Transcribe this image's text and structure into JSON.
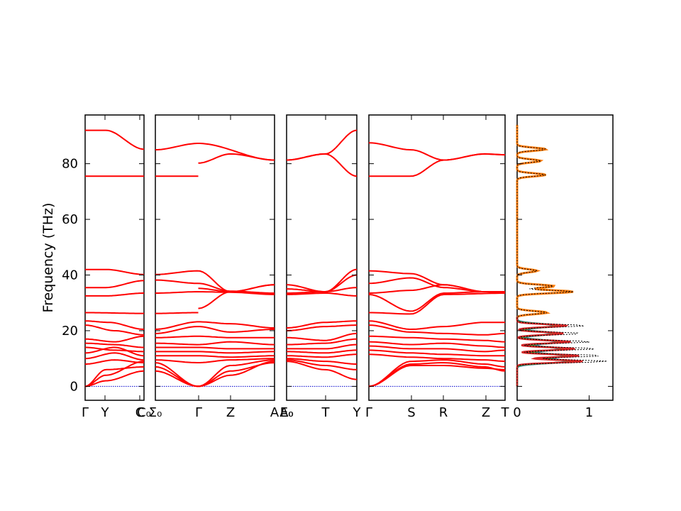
{
  "figure": {
    "ylabel": "Frequency (THz)"
  },
  "chart_data": {
    "type": "line",
    "ylim": [
      -5,
      97.5
    ],
    "yticks": [
      0,
      20,
      40,
      60,
      80
    ],
    "grid": false,
    "colors": {
      "band": "#ff0000",
      "zero_line": "#0000cc",
      "dos_total": "#000000",
      "dos_partial": [
        "#1f77b4",
        "#ff7f0e",
        "#2ca02c",
        "#d62728"
      ]
    },
    "band_panels": [
      {
        "xticks": [
          "Γ",
          "Y",
          "C",
          "C₀"
        ]
      },
      {
        "xticks": [
          "Σ₀",
          "Γ",
          "Z",
          "A"
        ]
      },
      {
        "xticks": [
          "A₀",
          "E₀",
          "T",
          "Y"
        ]
      },
      {
        "xticks": [
          "Γ",
          "S",
          "R",
          "Z",
          "T"
        ]
      }
    ],
    "dos_panel": {
      "xlim": [
        0,
        1.33
      ],
      "xticks": [
        "0",
        "1"
      ],
      "peaks": [
        {
          "f": 85.2,
          "v": 0.4
        },
        {
          "f": 81.0,
          "v": 0.33
        },
        {
          "f": 76.0,
          "v": 0.4
        },
        {
          "f": 41.5,
          "v": 0.28
        },
        {
          "f": 36.0,
          "v": 0.52
        },
        {
          "f": 34.0,
          "v": 0.78
        },
        {
          "f": 26.5,
          "v": 0.42
        },
        {
          "f": 21.8,
          "v": 0.95
        },
        {
          "f": 19.0,
          "v": 0.88
        },
        {
          "f": 16.0,
          "v": 1.02
        },
        {
          "f": 13.5,
          "v": 1.1
        },
        {
          "f": 11.0,
          "v": 1.18
        },
        {
          "f": 9.0,
          "v": 1.25
        }
      ]
    }
  }
}
